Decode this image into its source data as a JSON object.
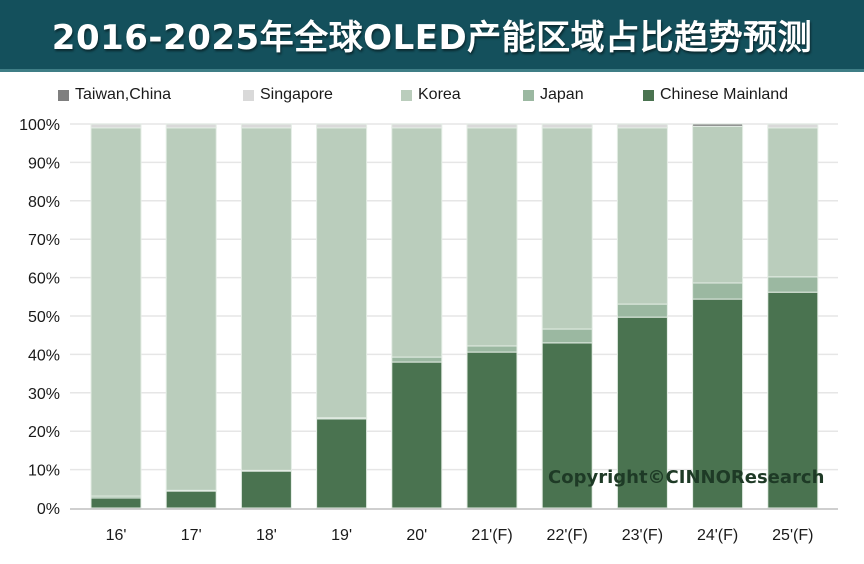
{
  "title": "2016-2025年全球OLED产能区域占比趋势预测",
  "watermark": "Copyright©CINNOResearch",
  "colors": {
    "title_bg": "#14505c",
    "Taiwan,China": "#7f7f7f",
    "Singapore": "#d9d9d9",
    "Korea": "#bacdbc",
    "Japan": "#9bb8a1",
    "Chinese Mainland": "#4a7350",
    "grid": "#e6e6e6"
  },
  "legend": [
    {
      "label": "Taiwan,China",
      "color": "#7f7f7f"
    },
    {
      "label": "Singapore",
      "color": "#d9d9d9"
    },
    {
      "label": "Korea",
      "color": "#bacdbc"
    },
    {
      "label": "Japan",
      "color": "#9bb8a1"
    },
    {
      "label": "Chinese Mainland",
      "color": "#4a7350"
    }
  ],
  "chart_data": {
    "type": "bar",
    "stacked": true,
    "title": "2016-2025年全球OLED产能区域占比趋势预测",
    "xlabel": "",
    "ylabel": "",
    "ylim": [
      0,
      100
    ],
    "yticks": [
      "0%",
      "10%",
      "20%",
      "30%",
      "40%",
      "50%",
      "60%",
      "70%",
      "80%",
      "90%",
      "100%"
    ],
    "grid": true,
    "legend_position": "top",
    "categories": [
      "16'",
      "17'",
      "18'",
      "19'",
      "20'",
      "21'(F)",
      "22'(F)",
      "23'(F)",
      "24'(F)",
      "25'(F)"
    ],
    "series": [
      {
        "name": "Chinese Mainland",
        "values": [
          2.6,
          4.4,
          9.6,
          23.2,
          38.0,
          40.6,
          43.0,
          49.7,
          54.4,
          56.2
        ]
      },
      {
        "name": "Japan",
        "values": [
          0.5,
          0.2,
          0.2,
          0.3,
          1.3,
          1.6,
          3.6,
          3.4,
          4.2,
          4.0
        ]
      },
      {
        "name": "Korea",
        "values": [
          95.9,
          94.4,
          89.2,
          75.5,
          59.7,
          56.8,
          52.4,
          45.9,
          40.8,
          38.8
        ]
      },
      {
        "name": "Singapore",
        "values": [
          1.0,
          1.0,
          1.0,
          1.0,
          1.0,
          1.0,
          1.0,
          1.0,
          0.0,
          1.0
        ]
      },
      {
        "name": "Taiwan,China",
        "values": [
          0.0,
          0.0,
          0.0,
          0.0,
          0.0,
          0.0,
          0.0,
          0.0,
          0.6,
          0.0
        ]
      }
    ]
  }
}
